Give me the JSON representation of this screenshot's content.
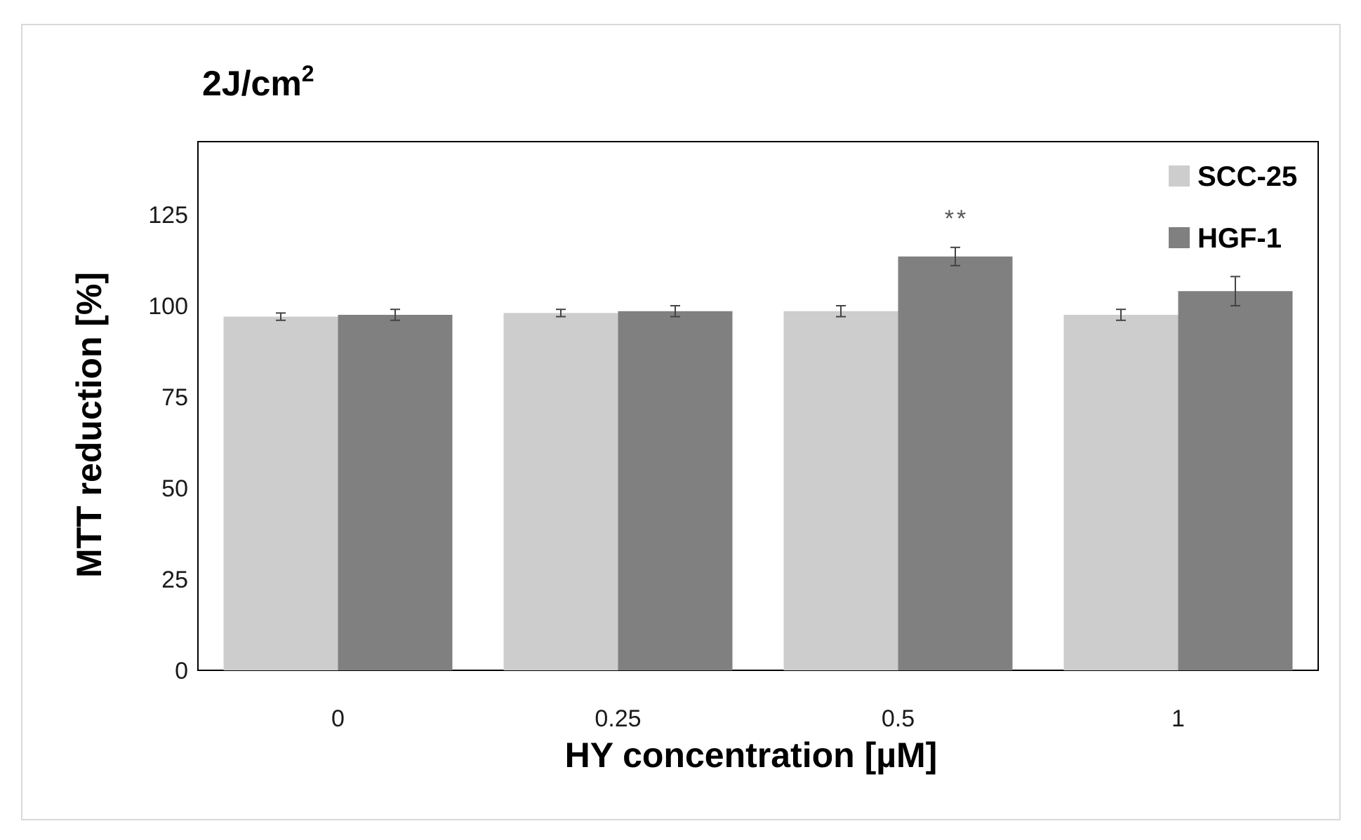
{
  "chart_data": {
    "type": "bar",
    "title": "2J/cm",
    "title_superscript": "2",
    "xlabel": "HY concentration [µM]",
    "ylabel": "MTT reduction [%]",
    "categories": [
      "0",
      "0.25",
      "0.5",
      "1"
    ],
    "series": [
      {
        "name": "SCC-25",
        "color": "#cdcdcd",
        "values": [
          97,
          98,
          98.5,
          97.5
        ],
        "errors": [
          1,
          1,
          1.5,
          1.5
        ]
      },
      {
        "name": "HGF-1",
        "color": "#808080",
        "values": [
          97.5,
          98.5,
          113.5,
          104
        ],
        "errors": [
          1.5,
          1.5,
          2.5,
          4
        ]
      }
    ],
    "ylim": [
      0,
      145
    ],
    "yticks": [
      "0",
      "25",
      "50",
      "75",
      "100",
      "125"
    ],
    "annotations": [
      {
        "category": "0.5",
        "series": "HGF-1",
        "text": "**"
      }
    ],
    "grid": false,
    "legend_position": "top-right"
  }
}
